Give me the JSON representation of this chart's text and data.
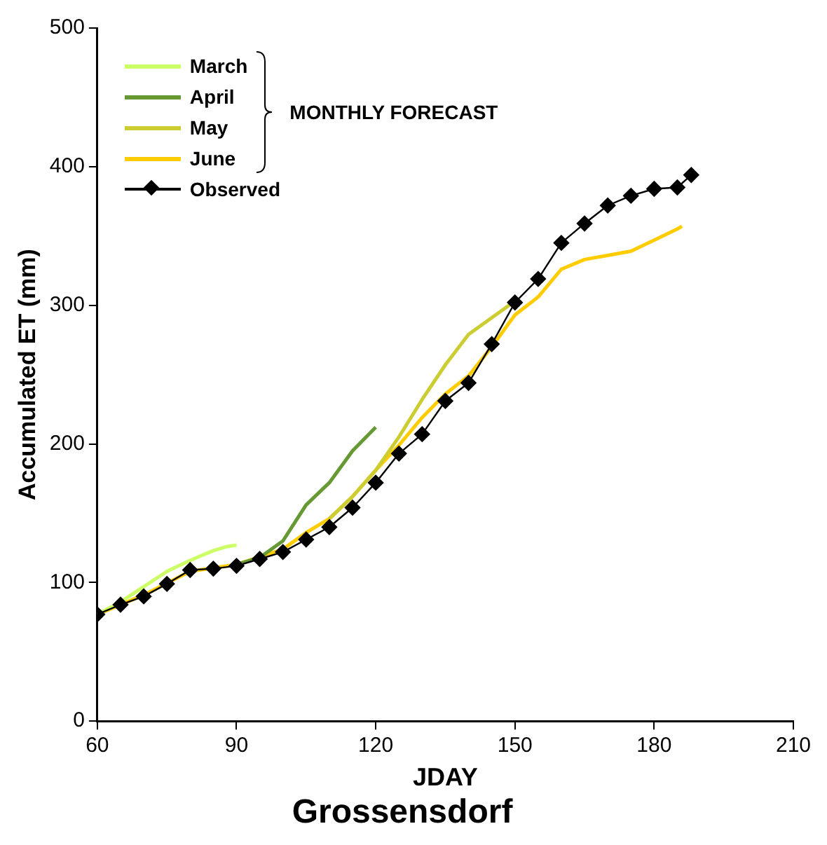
{
  "chart_data": {
    "type": "line",
    "title": "Grossensdorf",
    "xlabel": "JDAY",
    "ylabel": "Accumulated ET (mm)",
    "legend_title": "MONTHLY FORECAST",
    "xlim": [
      60,
      210
    ],
    "xticks": [
      60,
      90,
      120,
      150,
      180,
      210
    ],
    "ylim": [
      0,
      500
    ],
    "yticks": [
      0,
      100,
      200,
      300,
      400,
      500
    ],
    "grid": false,
    "legend": "top left",
    "line_style": "solid",
    "series": [
      {
        "name": "March",
        "color": "#ccff66",
        "marker": "none",
        "x": [
          60,
          65,
          70,
          75,
          80,
          85,
          88,
          90
        ],
        "values": [
          77,
          86,
          97,
          108,
          116,
          123,
          126,
          127
        ]
      },
      {
        "name": "April",
        "color": "#669933",
        "marker": "none",
        "x": [
          90,
          95,
          100,
          105,
          110,
          115,
          120
        ],
        "values": [
          113,
          118,
          130,
          156,
          172,
          195,
          212
        ]
      },
      {
        "name": "May",
        "color": "#cccc33",
        "marker": "none",
        "x": [
          110,
          115,
          120,
          125,
          130,
          135,
          140,
          145,
          150
        ],
        "values": [
          146,
          162,
          181,
          205,
          232,
          257,
          279,
          291,
          303
        ]
      },
      {
        "name": "June",
        "color": "#ffcc00",
        "marker": "none",
        "x": [
          60,
          70,
          80,
          90,
          100,
          105,
          110,
          115,
          120,
          125,
          130,
          135,
          140,
          145,
          150,
          155,
          160,
          165,
          170,
          175,
          180,
          185,
          186
        ],
        "values": [
          77,
          91,
          108,
          113,
          124,
          136,
          146,
          162,
          181,
          199,
          219,
          236,
          249,
          270,
          293,
          306,
          326,
          333,
          336,
          339,
          347,
          355,
          357
        ]
      },
      {
        "name": "Observed",
        "color": "#000000",
        "marker": "diamond",
        "x": [
          60,
          65,
          70,
          75,
          80,
          85,
          90,
          95,
          100,
          105,
          110,
          115,
          120,
          125,
          130,
          135,
          140,
          145,
          150,
          155,
          160,
          165,
          170,
          175,
          180,
          185,
          188
        ],
        "values": [
          77,
          84,
          90,
          99,
          109,
          110,
          112,
          117,
          122,
          131,
          140,
          154,
          172,
          193,
          207,
          231,
          244,
          272,
          302,
          319,
          345,
          359,
          372,
          379,
          384,
          385,
          394
        ]
      }
    ]
  }
}
